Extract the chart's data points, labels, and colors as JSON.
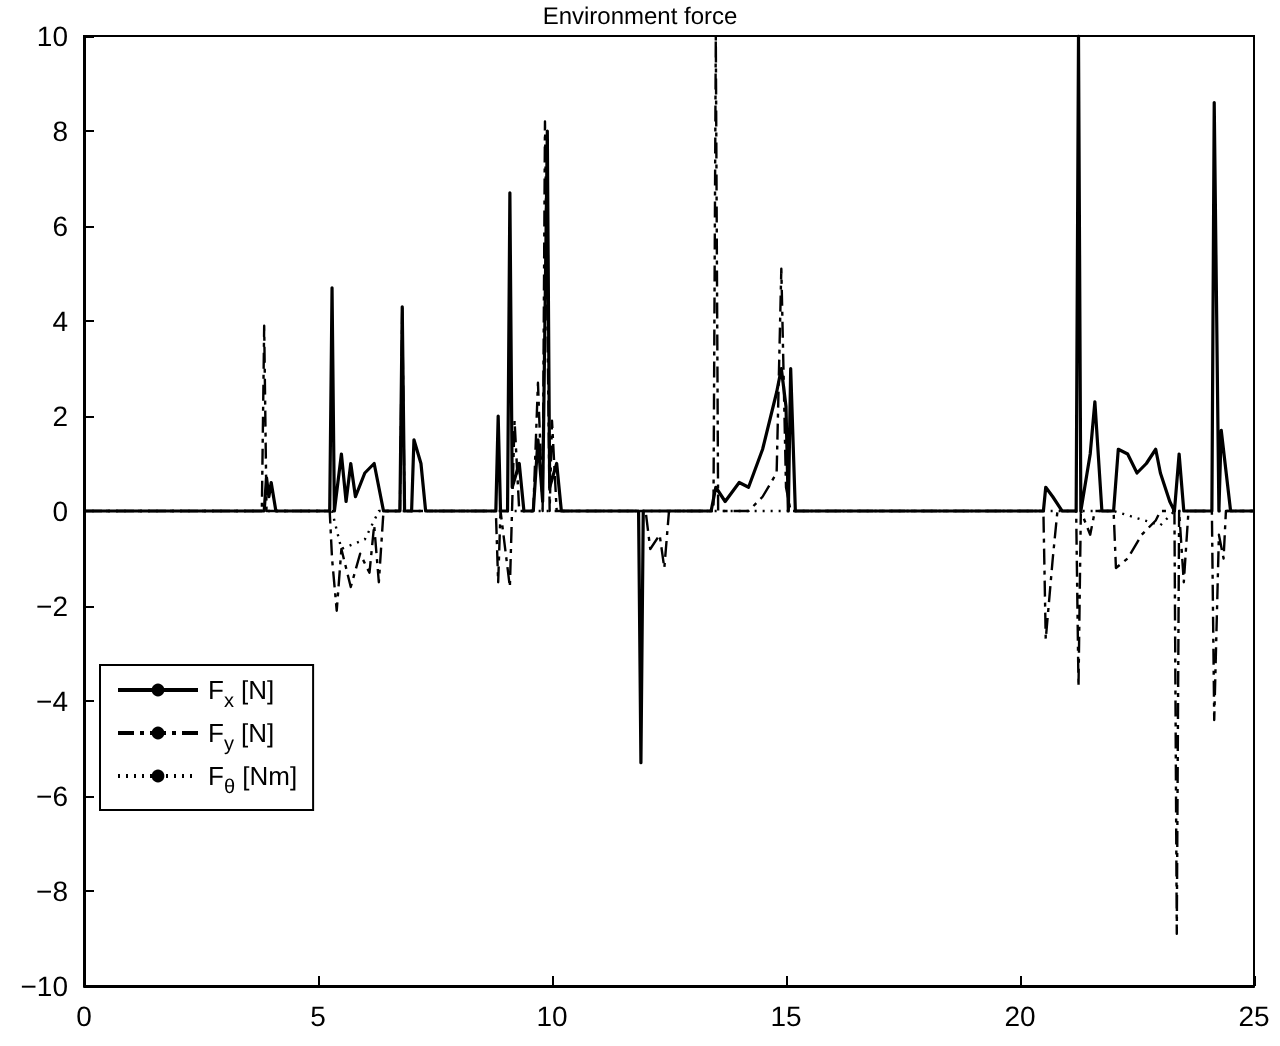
{
  "chart_data": {
    "type": "line",
    "title": "Environment force",
    "xlim": [
      0,
      25
    ],
    "xticks": [
      0,
      5,
      10,
      15,
      20,
      25
    ],
    "ylim": [
      -10,
      10
    ],
    "yticks": [
      -10,
      -8,
      -6,
      -4,
      -2,
      0,
      2,
      4,
      6,
      8,
      10
    ],
    "grid": false,
    "legend": "bottom left",
    "marker": "none",
    "series": [
      {
        "name": "F$_{x}$ [N]",
        "color": "#000000",
        "line_style": "solid",
        "x": [
          0,
          3.85,
          3.9,
          3.95,
          4.0,
          4.1,
          5.25,
          5.3,
          5.35,
          5.5,
          5.6,
          5.7,
          5.8,
          6.0,
          6.2,
          6.4,
          6.75,
          6.8,
          6.85,
          7.0,
          7.05,
          7.2,
          7.3,
          8.8,
          8.85,
          8.9,
          9.05,
          9.1,
          9.15,
          9.3,
          9.4,
          9.6,
          9.7,
          9.8,
          9.9,
          9.95,
          10.1,
          10.2,
          11.85,
          11.9,
          11.95,
          13.4,
          13.5,
          13.7,
          14.0,
          14.2,
          14.5,
          14.8,
          14.9,
          15.0,
          15.05,
          15.1,
          15.2,
          20.5,
          20.55,
          20.7,
          20.9,
          21.2,
          21.25,
          21.3,
          21.5,
          21.6,
          21.75,
          22.0,
          22.1,
          22.3,
          22.5,
          22.7,
          22.9,
          23.0,
          23.2,
          23.3,
          23.4,
          23.5,
          24.1,
          24.15,
          24.25,
          24.3,
          24.5,
          25
        ],
        "values": [
          0,
          0,
          0.7,
          0.3,
          0.6,
          0,
          0,
          4.7,
          0,
          1.2,
          0.2,
          1.0,
          0.3,
          0.8,
          1.0,
          0,
          0,
          4.3,
          0,
          0,
          1.5,
          1.0,
          0,
          0,
          2.0,
          0,
          0,
          6.7,
          0.5,
          1.0,
          0,
          0,
          1.5,
          0.2,
          8.0,
          0.5,
          1.0,
          0,
          0,
          -5.3,
          0,
          0,
          0.5,
          0.2,
          0.6,
          0.5,
          1.3,
          2.5,
          3.0,
          2.2,
          0,
          3.0,
          0,
          0,
          0.5,
          0.3,
          0,
          0,
          10,
          0,
          1.2,
          2.3,
          0,
          0,
          1.3,
          1.2,
          0.8,
          1.0,
          1.3,
          0.8,
          0.2,
          0,
          1.2,
          0,
          0,
          8.6,
          0,
          1.7,
          0,
          0
        ]
      },
      {
        "name": "F$_{y}$ [N]",
        "color": "#000000",
        "line_style": "dashdot",
        "x": [
          0,
          3.8,
          3.85,
          3.9,
          5.25,
          5.3,
          5.4,
          5.5,
          5.7,
          5.9,
          6.1,
          6.2,
          6.3,
          6.4,
          6.75,
          6.8,
          6.85,
          8.8,
          8.85,
          8.9,
          9.1,
          9.2,
          9.3,
          9.6,
          9.7,
          9.8,
          9.85,
          9.95,
          10.0,
          10.1,
          12.0,
          12.1,
          12.3,
          12.4,
          12.5,
          13.45,
          13.5,
          13.55,
          14.2,
          14.5,
          14.8,
          14.9,
          15.0,
          15.1,
          20.5,
          20.55,
          20.7,
          20.8,
          21.2,
          21.25,
          21.3,
          21.5,
          21.6,
          22.0,
          22.05,
          22.3,
          22.6,
          22.9,
          23.0,
          23.3,
          23.35,
          23.4,
          23.5,
          23.6,
          24.1,
          24.15,
          24.25,
          24.35,
          24.4,
          25
        ],
        "values": [
          0,
          0,
          3.9,
          0,
          0,
          -1.0,
          -2.1,
          -0.8,
          -1.6,
          -0.9,
          -1.3,
          -0.3,
          -1.5,
          0,
          0,
          4.3,
          0,
          0,
          -1.5,
          0,
          -1.6,
          1.9,
          0,
          0,
          2.7,
          0,
          8.2,
          0,
          1.9,
          0,
          0,
          -0.8,
          -0.5,
          -1.2,
          0,
          0,
          10,
          0,
          0,
          0.3,
          0.8,
          5.1,
          0.5,
          0,
          0,
          -2.7,
          -1.0,
          0,
          0,
          -3.7,
          0,
          -0.5,
          0,
          0,
          -1.2,
          -1.0,
          -0.5,
          -0.2,
          0,
          0,
          -8.9,
          0,
          -1.5,
          0,
          0,
          -4.4,
          -0.5,
          -1.0,
          0,
          0
        ]
      },
      {
        "name": "F$_{θ}$ [Nm]",
        "color": "#000000",
        "line_style": "dotted",
        "x": [
          0,
          5.3,
          5.5,
          6.0,
          6.3,
          22.0,
          23.0,
          23.3,
          25
        ],
        "values": [
          0,
          0,
          -0.8,
          -0.6,
          0,
          0,
          -0.3,
          0,
          0
        ]
      }
    ]
  }
}
